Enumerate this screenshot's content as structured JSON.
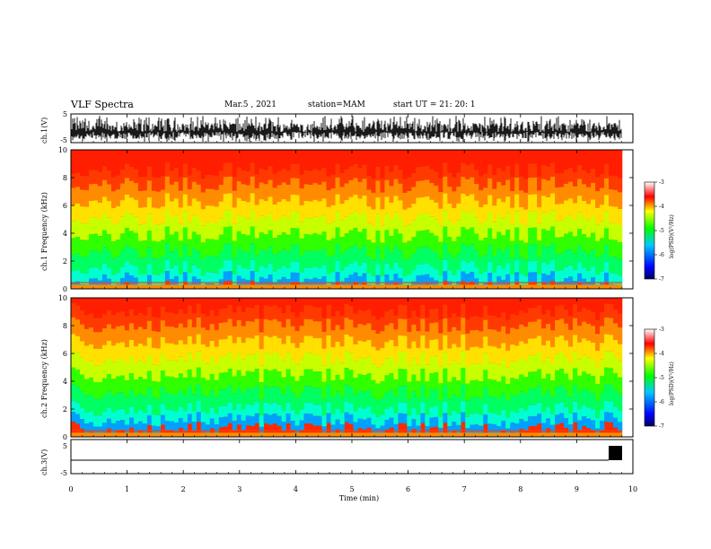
{
  "header": {
    "title": "VLF Spectra",
    "date": "Mar.5 , 2021",
    "station": "station=MAM",
    "start": "start UT = 21: 20: 1"
  },
  "chart_data": [
    {
      "type": "line",
      "panel": "ch1-waveform",
      "ylabel": "ch.1(V)",
      "yticks": [
        "5",
        "-5"
      ],
      "ylim": [
        -5,
        5
      ],
      "xlim": [
        0,
        10
      ]
    },
    {
      "type": "heatmap",
      "panel": "ch1-spectrogram",
      "ylabel": "ch.1 Frequency (kHz)",
      "yticks": [
        "0",
        "2",
        "4",
        "6",
        "8",
        "10"
      ],
      "ylim": [
        0,
        10
      ],
      "xlim": [
        0,
        10
      ],
      "colorbar": {
        "label": "log(PSD)(V²/Hz)",
        "ticks": [
          "-3",
          "-4",
          "-5",
          "-6",
          "-7"
        ],
        "range": [
          -7,
          -3
        ],
        "colors": [
          "#000060",
          "#0000ff",
          "#00c8ff",
          "#00ff00",
          "#ffff00",
          "#ff0000",
          "#ffffff"
        ]
      }
    },
    {
      "type": "heatmap",
      "panel": "ch2-spectrogram",
      "ylabel": "ch.2 Frequency (kHz)",
      "yticks": [
        "0",
        "2",
        "4",
        "6",
        "8",
        "10"
      ],
      "ylim": [
        0,
        10
      ],
      "xlim": [
        0,
        10
      ],
      "colorbar": {
        "label": "log(PSD)(V²/Hz)",
        "ticks": [
          "-3",
          "-4",
          "-5",
          "-6",
          "-7"
        ],
        "range": [
          -7,
          -3
        ]
      }
    },
    {
      "type": "line",
      "panel": "ch3-waveform",
      "ylabel": "ch.3(V)",
      "yticks": [
        "5",
        "-5"
      ],
      "ylim": [
        -5,
        5
      ],
      "xlim": [
        0,
        10
      ],
      "xlabel": "Time (min)",
      "xticks": [
        "0",
        "1",
        "2",
        "3",
        "4",
        "5",
        "6",
        "7",
        "8",
        "9",
        "10"
      ]
    }
  ]
}
